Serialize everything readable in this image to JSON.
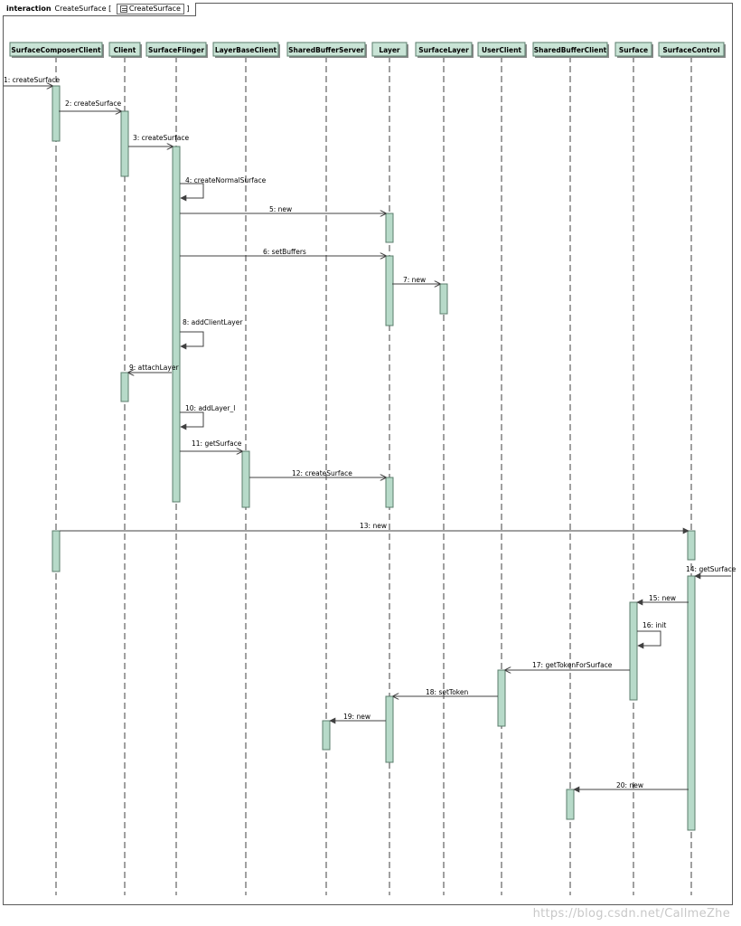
{
  "frame": {
    "keyword": "interaction",
    "name": "CreateSurface",
    "ref_label": "CreateSurface"
  },
  "lifelines": [
    "SurfaceComposerClient",
    "Client",
    "SurfaceFlinger",
    "LayerBaseClient",
    "SharedBufferServer",
    "Layer",
    "SurfaceLayer",
    "UserClient",
    "SharedBufferClient",
    "Surface",
    "SurfaceControl"
  ],
  "messages": [
    "1: createSurface",
    "2: createSurface",
    "3: createSurface",
    "4: createNormalSurface",
    "5: new",
    "6: setBuffers",
    "7: new",
    "8: addClientLayer",
    "9: attachLayer",
    "10: addLayer_l",
    "11: getSurface",
    "12: createSurface",
    "13: new",
    "14: getSurface",
    "15: new",
    "16: init",
    "17: getTokenForSurface",
    "18: setToken",
    "19: new",
    "20: new"
  ],
  "colors": {
    "activation_fill": "#b7dac9",
    "activation_stroke": "#5b7d6c",
    "header_fill": "#c9e4d6",
    "line": "#404040"
  },
  "watermark": "https://blog.csdn.net/CallmeZhe"
}
